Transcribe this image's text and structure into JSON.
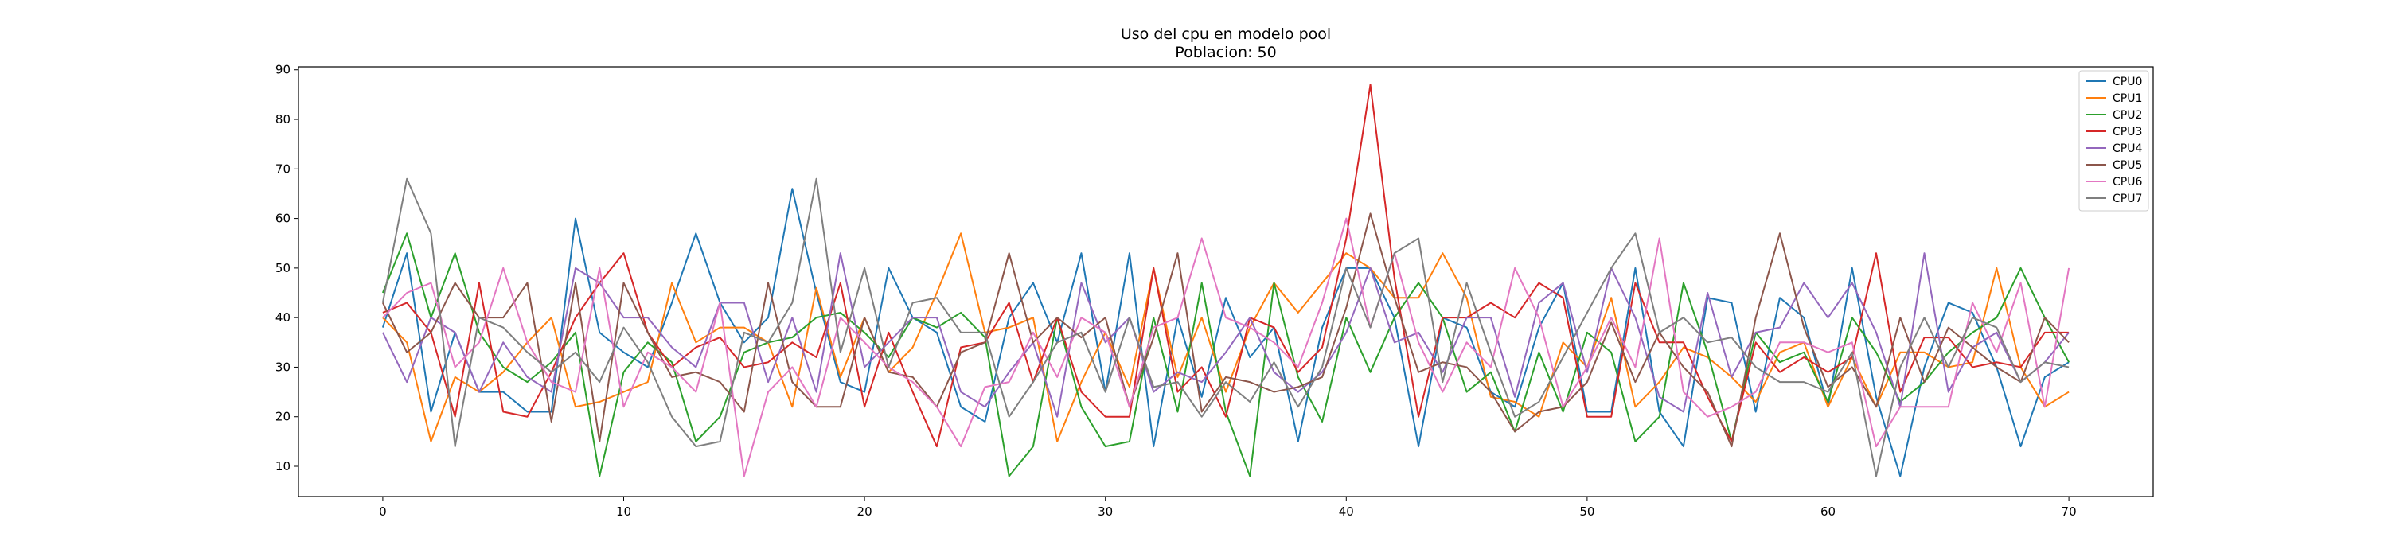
{
  "chart_data": {
    "type": "line",
    "title": "Uso del cpu en modelo pool",
    "subtitle": "Poblacion: 50",
    "xlabel": "",
    "ylabel": "",
    "xlim": [
      -3.5,
      73.5
    ],
    "ylim": [
      3.9,
      90.6
    ],
    "xticks": [
      0,
      10,
      20,
      30,
      40,
      50,
      60,
      70
    ],
    "yticks": [
      10,
      20,
      30,
      40,
      50,
      60,
      70,
      80,
      90
    ],
    "grid": false,
    "legend": "top-right",
    "x": [
      0,
      1,
      2,
      3,
      4,
      5,
      6,
      7,
      8,
      9,
      10,
      11,
      12,
      13,
      14,
      15,
      16,
      17,
      18,
      19,
      20,
      21,
      22,
      23,
      24,
      25,
      26,
      27,
      28,
      29,
      30,
      31,
      32,
      33,
      34,
      35,
      36,
      37,
      38,
      39,
      40,
      41,
      42,
      43,
      44,
      45,
      46,
      47,
      48,
      49,
      50,
      51,
      52,
      53,
      54,
      55,
      56,
      57,
      58,
      59,
      60,
      61,
      62,
      63,
      64,
      65,
      66,
      67,
      68,
      69,
      70
    ],
    "series": [
      {
        "name": "CPU0",
        "color": "#1f77b4",
        "values": [
          38,
          53,
          21,
          37,
          25,
          25,
          21,
          21,
          60,
          37,
          33,
          30,
          43,
          57,
          43,
          35,
          40,
          66,
          45,
          27,
          25,
          50,
          40,
          37,
          22,
          19,
          40,
          47,
          35,
          53,
          25,
          53,
          14,
          40,
          24,
          44,
          32,
          38,
          15,
          38,
          50,
          50,
          40,
          14,
          40,
          38,
          25,
          22,
          38,
          47,
          21,
          21,
          50,
          21,
          14,
          44,
          43,
          21,
          44,
          40,
          22,
          50,
          24,
          8,
          30,
          43,
          41,
          30,
          14,
          28,
          31
        ]
      },
      {
        "name": "CPU1",
        "color": "#ff7f0e",
        "values": [
          40,
          35,
          15,
          28,
          25,
          29,
          35,
          40,
          22,
          23,
          25,
          27,
          47,
          35,
          38,
          38,
          35,
          22,
          46,
          28,
          40,
          29,
          34,
          45,
          57,
          37,
          38,
          40,
          15,
          27,
          37,
          26,
          50,
          28,
          40,
          25,
          38,
          47,
          41,
          47,
          53,
          50,
          44,
          44,
          53,
          44,
          24,
          23,
          20,
          35,
          30,
          44,
          22,
          27,
          34,
          32,
          28,
          23,
          33,
          35,
          22,
          32,
          22,
          33,
          33,
          30,
          31,
          50,
          30,
          22,
          25
        ]
      },
      {
        "name": "CPU2",
        "color": "#2ca02c",
        "values": [
          45,
          57,
          40,
          53,
          37,
          30,
          27,
          31,
          37,
          8,
          29,
          35,
          31,
          15,
          20,
          33,
          35,
          36,
          40,
          41,
          37,
          32,
          40,
          38,
          41,
          36,
          8,
          14,
          40,
          22,
          14,
          15,
          40,
          21,
          47,
          21,
          8,
          47,
          28,
          19,
          40,
          29,
          40,
          47,
          40,
          25,
          29,
          17,
          33,
          21,
          37,
          33,
          15,
          20,
          47,
          33,
          15,
          37,
          31,
          33,
          23,
          40,
          33,
          23,
          27,
          33,
          37,
          40,
          50,
          40,
          31
        ]
      },
      {
        "name": "CPU3",
        "color": "#d62728",
        "values": [
          41,
          43,
          37,
          20,
          47,
          21,
          20,
          29,
          40,
          47,
          53,
          37,
          30,
          34,
          36,
          30,
          31,
          35,
          32,
          47,
          22,
          37,
          25,
          14,
          34,
          35,
          43,
          27,
          40,
          25,
          20,
          20,
          50,
          25,
          30,
          20,
          40,
          38,
          29,
          34,
          56,
          87,
          48,
          20,
          40,
          40,
          43,
          40,
          47,
          44,
          20,
          20,
          47,
          35,
          35,
          24,
          15,
          35,
          29,
          32,
          29,
          32,
          53,
          25,
          36,
          36,
          30,
          31,
          30,
          37,
          37
        ]
      },
      {
        "name": "CPU4",
        "color": "#9467bd",
        "values": [
          37,
          27,
          40,
          37,
          25,
          35,
          28,
          25,
          50,
          47,
          40,
          40,
          34,
          30,
          43,
          43,
          27,
          40,
          25,
          53,
          30,
          35,
          40,
          40,
          25,
          22,
          29,
          35,
          20,
          47,
          35,
          40,
          25,
          29,
          27,
          33,
          40,
          29,
          25,
          29,
          37,
          50,
          35,
          37,
          29,
          40,
          40,
          24,
          43,
          47,
          29,
          50,
          40,
          24,
          21,
          45,
          28,
          37,
          38,
          47,
          40,
          47,
          37,
          22,
          53,
          25,
          34,
          37,
          27,
          31,
          37
        ]
      },
      {
        "name": "CPU5",
        "color": "#8c564b",
        "values": [
          43,
          33,
          37,
          47,
          40,
          40,
          47,
          19,
          47,
          15,
          47,
          37,
          28,
          29,
          27,
          21,
          47,
          27,
          22,
          22,
          40,
          29,
          28,
          22,
          33,
          35,
          53,
          35,
          40,
          36,
          40,
          22,
          36,
          53,
          21,
          28,
          27,
          25,
          26,
          28,
          42,
          61,
          44,
          29,
          31,
          30,
          25,
          17,
          21,
          22,
          27,
          39,
          27,
          37,
          30,
          25,
          14,
          40,
          57,
          38,
          26,
          30,
          22,
          40,
          27,
          38,
          34,
          30,
          27,
          40,
          35
        ]
      },
      {
        "name": "CPU6",
        "color": "#e377c2",
        "values": [
          40,
          45,
          47,
          30,
          35,
          50,
          35,
          27,
          25,
          50,
          22,
          33,
          30,
          25,
          43,
          8,
          25,
          30,
          22,
          40,
          35,
          30,
          27,
          22,
          14,
          26,
          27,
          37,
          28,
          40,
          37,
          22,
          38,
          40,
          56,
          40,
          38,
          35,
          30,
          43,
          60,
          38,
          53,
          35,
          25,
          35,
          30,
          50,
          40,
          22,
          30,
          40,
          30,
          56,
          25,
          20,
          22,
          25,
          35,
          35,
          33,
          35,
          14,
          22,
          22,
          22,
          43,
          33,
          47,
          22,
          50
        ]
      },
      {
        "name": "CPU7",
        "color": "#7f7f7f",
        "values": [
          43,
          68,
          57,
          14,
          40,
          38,
          33,
          29,
          33,
          27,
          38,
          31,
          20,
          14,
          15,
          37,
          35,
          43,
          68,
          33,
          50,
          30,
          43,
          44,
          37,
          37,
          20,
          27,
          35,
          37,
          25,
          40,
          26,
          27,
          20,
          27,
          23,
          31,
          22,
          30,
          50,
          38,
          53,
          56,
          27,
          47,
          33,
          20,
          23,
          32,
          41,
          50,
          57,
          37,
          40,
          35,
          36,
          30,
          27,
          27,
          25,
          33,
          8,
          30,
          40,
          30,
          40,
          38,
          27,
          31,
          30
        ]
      }
    ]
  }
}
